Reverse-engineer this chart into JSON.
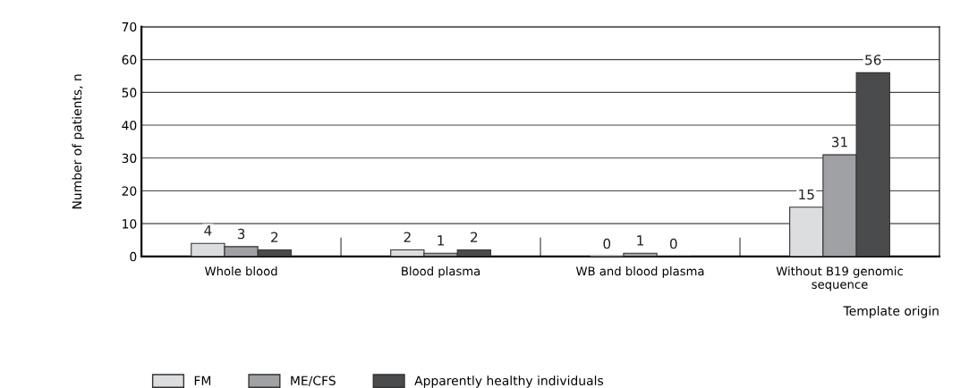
{
  "chart_data": {
    "type": "bar",
    "xlabel": "Template origin",
    "ylabel": "Number of patients, n",
    "categories": [
      "Whole blood",
      "Blood plasma",
      "WB and blood plasma",
      "Without B19 genomic\nsequence"
    ],
    "series": [
      {
        "name": "FM",
        "color": "#dcdddf",
        "values": [
          4,
          2,
          0,
          15
        ]
      },
      {
        "name": "ME/CFS",
        "color": "#a0a1a4",
        "values": [
          3,
          1,
          1,
          31
        ]
      },
      {
        "name": "Apparently healthy individuals",
        "color": "#4a4b4d",
        "values": [
          2,
          2,
          0,
          56
        ]
      }
    ],
    "ylim": [
      0,
      70
    ],
    "yticks": [
      0,
      10,
      20,
      30,
      40,
      50,
      60,
      70
    ],
    "grid": "y",
    "legend": "bottom",
    "data_labels": true
  }
}
